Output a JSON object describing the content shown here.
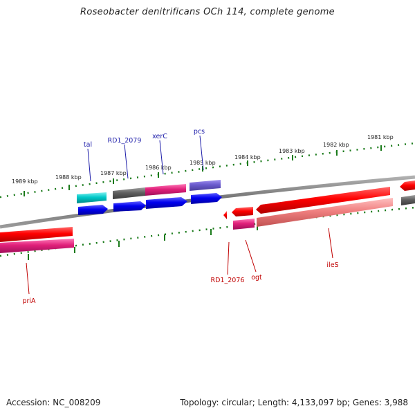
{
  "title": "Roseobacter denitrificans OCh 114, complete genome",
  "accession_label": "Accession: NC_008209",
  "summary_label": "Topology: circular; Length: 4,133,097 bp; Genes: 3,988",
  "colors": {
    "backbone": "#7a7a7a",
    "ticks": "#1a7a1a",
    "forward_label": "#1a1aa8",
    "reverse_label": "#c00000"
  },
  "ticks": [
    {
      "label": "1989 kbp"
    },
    {
      "label": "1988 kbp"
    },
    {
      "label": "1987 kbp"
    },
    {
      "label": "1986 kbp"
    },
    {
      "label": "1985 kbp"
    },
    {
      "label": "1984 kbp"
    },
    {
      "label": "1983 kbp"
    },
    {
      "label": "1982 kbp"
    },
    {
      "label": "1981 kbp"
    }
  ],
  "genes_forward": [
    {
      "name": "tal",
      "color": "#00c8c8"
    },
    {
      "name": "RD1_2079",
      "color": "#606060"
    },
    {
      "name": "xerC",
      "color": "#e0207a"
    },
    {
      "name": "pcs",
      "color": "#6a5acd"
    }
  ],
  "genes_reverse": [
    {
      "name": "priA",
      "color": "#e0207a"
    },
    {
      "name": "RD1_2076",
      "color": "#ff0000"
    },
    {
      "name": "ogt",
      "color": "#e0207a"
    },
    {
      "name": "ileS",
      "color": "#f08080"
    }
  ]
}
